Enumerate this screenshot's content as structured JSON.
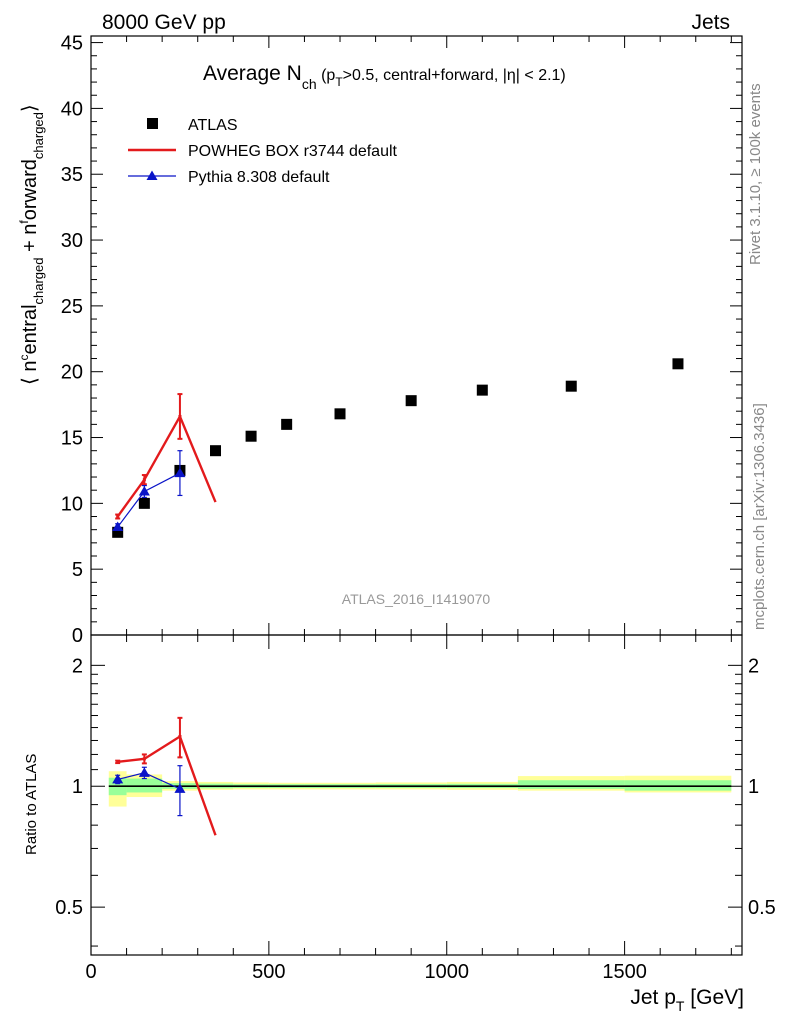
{
  "header": {
    "left": "8000 GeV pp",
    "right": "Jets"
  },
  "side_labels": {
    "rivet": "Rivet 3.1.10, ≥ 100k events",
    "mcplots": "mcplots.cern.ch [arXiv:1306.3436]"
  },
  "analysis_id": "ATLAS_2016_I1419070",
  "colors": {
    "data": "#000000",
    "powheg": "#e31a1c",
    "pythia": "#0a14c8",
    "band_yellow": "#ffff99",
    "band_green": "#99ff99"
  },
  "chart_data": [
    {
      "type": "scatter",
      "title": {
        "main": "Average N",
        "sub": "ch",
        "rest": " (p",
        "sub2": "T",
        "rest2": ">0.5, central+forward, |η| < 2.1)"
      },
      "ylabel": {
        "open": "⟨ n",
        "sup1": "c",
        "part1": "entral",
        "sub1": "charged",
        "mid": " + n",
        "sup2": "f",
        "part2": "orward",
        "sub2": "charged",
        "close": "⟩"
      },
      "xlim": [
        0,
        1830
      ],
      "ylim": [
        0,
        45.5
      ],
      "yticks": [
        0,
        5,
        10,
        15,
        20,
        25,
        30,
        35,
        40,
        45
      ],
      "legend": [
        "ATLAS",
        "POWHEG BOX r3744 default",
        "Pythia 8.308 default"
      ],
      "legend_position": "top-left",
      "series": [
        {
          "name": "ATLAS",
          "x": [
            75,
            150,
            250,
            350,
            450,
            550,
            700,
            900,
            1100,
            1350,
            1650
          ],
          "y": [
            7.8,
            10.0,
            12.5,
            14.0,
            15.1,
            16.0,
            16.8,
            17.8,
            18.6,
            18.9,
            20.6
          ]
        },
        {
          "name": "POWHEG BOX r3744 default",
          "x": [
            75,
            150,
            250,
            350
          ],
          "y": [
            9.0,
            11.8,
            16.6,
            10.1
          ],
          "err": [
            0.15,
            0.35,
            1.7,
            0
          ]
        },
        {
          "name": "Pythia 8.308 default",
          "x": [
            75,
            150,
            250
          ],
          "y": [
            8.2,
            10.9,
            12.3
          ],
          "err": [
            0.25,
            0.45,
            1.7
          ]
        }
      ]
    },
    {
      "type": "scatter",
      "ylabel": "Ratio to ATLAS",
      "xlabel": {
        "main": "Jet p",
        "sub": "T",
        "unit": " [GeV]"
      },
      "xlim": [
        0,
        1830
      ],
      "ylim": [
        0.38,
        2.38
      ],
      "log_y": true,
      "yticks": [
        0.5,
        1,
        2
      ],
      "xticks": [
        0,
        500,
        1000,
        1500
      ],
      "bands": [
        {
          "x": [
            50,
            100
          ],
          "yellow": [
            0.89,
            1.09
          ],
          "green": [
            0.95,
            1.05
          ]
        },
        {
          "x": [
            100,
            200
          ],
          "yellow": [
            0.94,
            1.07
          ],
          "green": [
            0.965,
            1.045
          ]
        },
        {
          "x": [
            200,
            300
          ],
          "yellow": [
            0.975,
            1.03
          ],
          "green": [
            0.985,
            1.018
          ]
        },
        {
          "x": [
            300,
            400
          ],
          "yellow": [
            0.98,
            1.025
          ],
          "green": [
            0.988,
            1.015
          ]
        },
        {
          "x": [
            400,
            500
          ],
          "yellow": [
            0.982,
            1.022
          ],
          "green": [
            0.99,
            1.012
          ]
        },
        {
          "x": [
            500,
            600
          ],
          "yellow": [
            0.982,
            1.02
          ],
          "green": [
            0.99,
            1.012
          ]
        },
        {
          "x": [
            600,
            800
          ],
          "yellow": [
            0.982,
            1.02
          ],
          "green": [
            0.99,
            1.012
          ]
        },
        {
          "x": [
            800,
            1000
          ],
          "yellow": [
            0.982,
            1.022
          ],
          "green": [
            0.99,
            1.013
          ]
        },
        {
          "x": [
            1000,
            1200
          ],
          "yellow": [
            0.98,
            1.025
          ],
          "green": [
            0.99,
            1.014
          ]
        },
        {
          "x": [
            1200,
            1500
          ],
          "yellow": [
            0.975,
            1.06
          ],
          "green": [
            0.985,
            1.035
          ]
        },
        {
          "x": [
            1500,
            1800
          ],
          "yellow": [
            0.965,
            1.062
          ],
          "green": [
            0.975,
            1.035
          ]
        }
      ],
      "series": [
        {
          "name": "POWHEG BOX r3744 default",
          "x": [
            75,
            150,
            250,
            350
          ],
          "y": [
            1.15,
            1.17,
            1.33,
            0.755
          ],
          "err": [
            0.008,
            0.03,
            0.15,
            0
          ]
        },
        {
          "name": "Pythia 8.308 default",
          "x": [
            75,
            150,
            250
          ],
          "y": [
            1.04,
            1.08,
            0.985
          ],
          "err": [
            0.025,
            0.035,
            0.14
          ]
        }
      ]
    }
  ]
}
